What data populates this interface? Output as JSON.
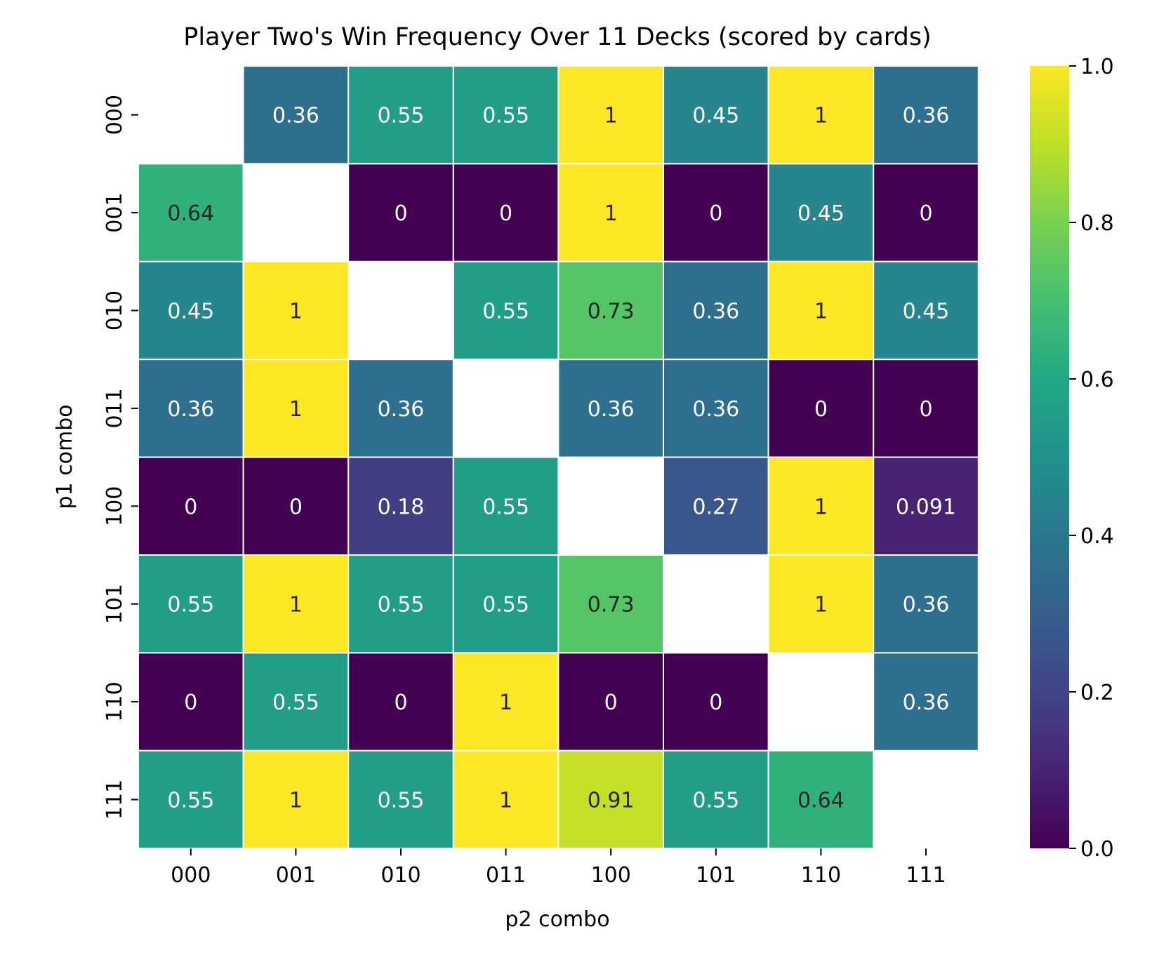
{
  "chart_data": {
    "type": "heatmap",
    "title": "Player Two's Win Frequency Over 11 Decks (scored by cards)",
    "xlabel": "p2 combo",
    "ylabel": "p1 combo",
    "x_categories": [
      "000",
      "001",
      "010",
      "011",
      "100",
      "101",
      "110",
      "111"
    ],
    "y_categories": [
      "000",
      "001",
      "010",
      "011",
      "100",
      "101",
      "110",
      "111"
    ],
    "values": [
      [
        null,
        0.36,
        0.55,
        0.55,
        1,
        0.45,
        1,
        0.36
      ],
      [
        0.64,
        null,
        0,
        0,
        1,
        0,
        0.45,
        0
      ],
      [
        0.45,
        1,
        null,
        0.55,
        0.73,
        0.36,
        1,
        0.45
      ],
      [
        0.36,
        1,
        0.36,
        null,
        0.36,
        0.36,
        0,
        0
      ],
      [
        0,
        0,
        0.18,
        0.55,
        null,
        0.27,
        1,
        0.091
      ],
      [
        0.55,
        1,
        0.55,
        0.55,
        0.73,
        null,
        1,
        0.36
      ],
      [
        0,
        0.55,
        0,
        1,
        0,
        0,
        null,
        0.36
      ],
      [
        0.55,
        1,
        0.55,
        1,
        0.91,
        0.55,
        0.64,
        null
      ]
    ],
    "colormap": "viridis",
    "vmin": 0,
    "vmax": 1,
    "colorbar_ticks": [
      "0.0",
      "0.2",
      "0.4",
      "0.6",
      "0.8",
      "1.0"
    ],
    "colorbar_position": "right",
    "cell_border_color": "#ffffff"
  }
}
